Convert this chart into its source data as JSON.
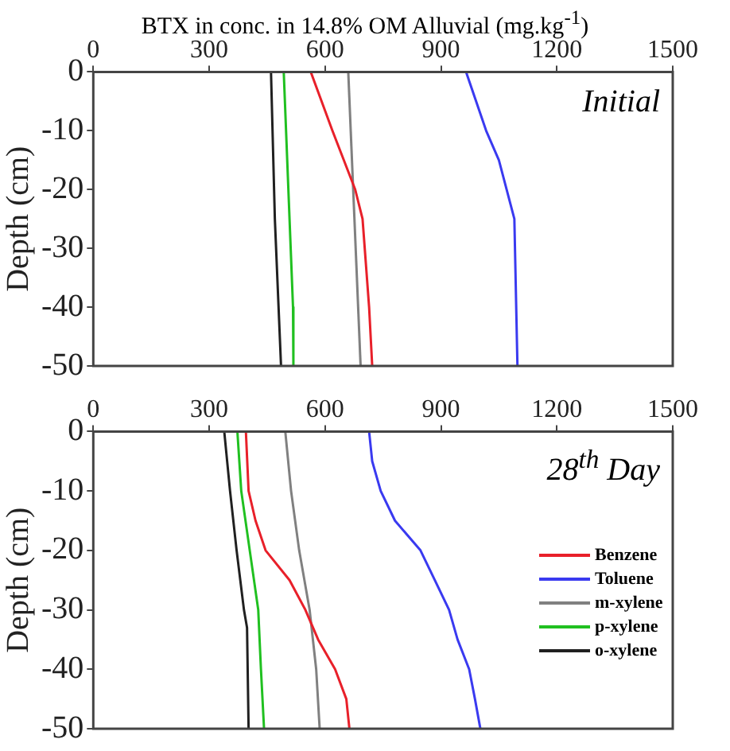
{
  "chart_data": [
    {
      "type": "line",
      "title": "BTX in conc. in 14.8% OM Alluvial (mg.kg$^{-1}$)",
      "ylabel": "Depth (cm)",
      "annotations": [
        "Initial"
      ],
      "xlim": [
        0,
        1500
      ],
      "xticks": [
        0,
        300,
        600,
        900,
        1200,
        1500
      ],
      "ylim": [
        -50,
        0
      ],
      "yticks": [
        -50,
        -40,
        -30,
        -20,
        -10,
        0
      ],
      "grid": false,
      "legend": false,
      "marker": "none",
      "line_style": "solid",
      "series": [
        {
          "color": "#e8202a",
          "x": [
            563,
            619,
            678,
            697,
            714,
            722
          ],
          "values": [
            0,
            -10,
            -20,
            -25,
            -40,
            -50
          ]
        },
        {
          "color": "#3a3af0",
          "x": [
            965,
            1017,
            1050,
            1090,
            1098
          ],
          "values": [
            0,
            -10,
            -15,
            -25,
            -50
          ]
        },
        {
          "color": "#808080",
          "x": [
            660,
            692
          ],
          "values": [
            0,
            -50
          ]
        },
        {
          "color": "#20c020",
          "x": [
            493,
            517,
            518
          ],
          "values": [
            0,
            -40,
            -50
          ]
        },
        {
          "color": "#202020",
          "x": [
            460,
            470,
            486
          ],
          "values": [
            0,
            -25,
            -50
          ]
        }
      ]
    },
    {
      "type": "line",
      "ylabel": "Depth (cm)",
      "annotations": [
        "28$^{th}$ Day"
      ],
      "xlim": [
        0,
        1500
      ],
      "xticks": [
        0,
        300,
        600,
        900,
        1200,
        1500
      ],
      "ylim": [
        -50,
        0
      ],
      "yticks": [
        -50,
        -40,
        -30,
        -20,
        -10,
        0
      ],
      "grid": false,
      "legend": "right",
      "marker": "none",
      "line_style": "solid",
      "series": [
        {
          "name": "Benzene",
          "color": "#e8202a",
          "x": [
            395,
            402,
            420,
            446,
            508,
            549,
            582,
            626,
            655,
            663
          ],
          "values": [
            0,
            -10,
            -15,
            -20,
            -25,
            -30,
            -35,
            -40,
            -45,
            -50
          ]
        },
        {
          "name": "Toluene",
          "color": "#3a3af0",
          "x": [
            714,
            722,
            744,
            781,
            847,
            884,
            921,
            943,
            973,
            988,
            1002
          ],
          "values": [
            0,
            -5,
            -10,
            -15,
            -20,
            -25,
            -30,
            -35,
            -40,
            -45,
            -50
          ]
        },
        {
          "name": "m-xylene",
          "color": "#808080",
          "x": [
            497,
            512,
            533,
            560,
            577,
            586
          ],
          "values": [
            0,
            -10,
            -20,
            -30,
            -40,
            -50
          ]
        },
        {
          "name": "p-xylene",
          "color": "#20c020",
          "x": [
            373,
            383,
            405,
            427,
            434,
            442
          ],
          "values": [
            0,
            -10,
            -20,
            -30,
            -40,
            -50
          ]
        },
        {
          "name": "o-xylene",
          "color": "#202020",
          "x": [
            339,
            354,
            371,
            390,
            398,
            402
          ],
          "values": [
            0,
            -10,
            -20,
            -30,
            -33,
            -50
          ]
        }
      ]
    }
  ]
}
